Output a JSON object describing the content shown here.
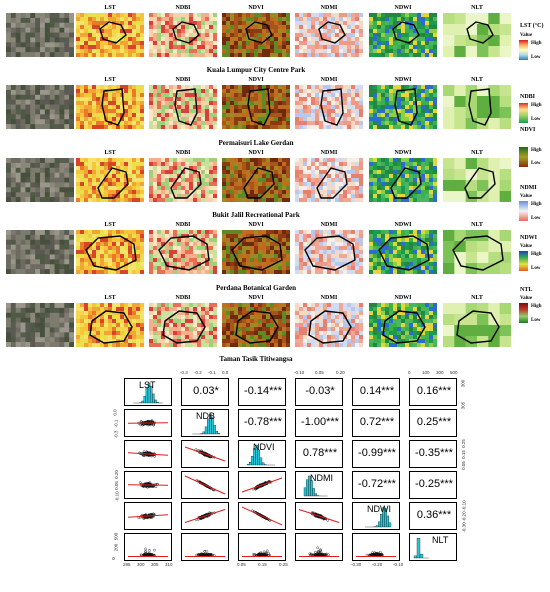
{
  "index_labels": [
    "LST",
    "NDBI",
    "NDVI",
    "NDMI",
    "NDWI",
    "NLT"
  ],
  "captions": [
    "Kuala Lumpur City Centre Park",
    "Permaisuri Lake Gerdan",
    "Bukit Jalil Recreational Park",
    "Perdana Botanical Garden",
    "Taman Tasik Titiwangsa"
  ],
  "legend": {
    "lst": {
      "title": "LST (°C)",
      "value": "Value",
      "high": "High",
      "low": "Low"
    },
    "ndbi": {
      "title": "NDBI",
      "high": "High",
      "low": "Low"
    },
    "ndvi": {
      "title": "NDVI",
      "high": "High",
      "low": "Low"
    },
    "ndmi": {
      "title": "NDMI",
      "value": "Value",
      "high": "High",
      "low": "Low"
    },
    "ndwi": {
      "title": "NDWI",
      "value": "Value",
      "high": "High",
      "low": "Low"
    },
    "ntl": {
      "title": "NTL",
      "value": "Value",
      "high": "High",
      "low": "Low"
    }
  },
  "pairs_plot": {
    "variables": [
      "LST",
      "NDB",
      "NDVI",
      "NDMI",
      "NDWI",
      "NLT"
    ],
    "coefficients": [
      [
        "",
        "0.03*",
        "-0.14***",
        "-0.03*",
        "0.14***",
        "0.16***"
      ],
      [
        "",
        "",
        "-0.78***",
        "-1.00***",
        "0.72***",
        "0.25***"
      ],
      [
        "",
        "",
        "",
        "0.78***",
        "-0.99***",
        "-0.35***"
      ],
      [
        "",
        "",
        "",
        "",
        "-0.72***",
        "-0.25***"
      ],
      [
        "",
        "",
        "",
        "",
        "",
        "0.36***"
      ]
    ],
    "top_ticks": {
      "ndb": [
        "-0.3",
        "-0.2",
        "-0.1",
        "0.0"
      ],
      "ndmi": [
        "-0.10",
        "0.05",
        "0.20"
      ],
      "nlt": [
        "0",
        "100",
        "300",
        "500"
      ]
    },
    "right_ticks": {
      "lst": [
        "300",
        "305"
      ],
      "ndvi": [
        "0.25",
        "0.15",
        "0.05"
      ],
      "ndwi": [
        "-0.10",
        "-0.20",
        "-0.30"
      ]
    },
    "left_ticks": {
      "ndb": [
        "0.0",
        "-0.1",
        "-0.3"
      ],
      "ndmi": [
        "0.20",
        "0.05",
        "-0.10"
      ],
      "nlt": [
        "500",
        "200",
        "0"
      ]
    },
    "bottom_ticks": {
      "lst": [
        "295",
        "300",
        "305",
        "310"
      ],
      "ndvi": [
        "0.05",
        "0.15",
        "0.25"
      ],
      "ndwi": [
        "-0.30",
        "-0.20",
        "-0.10"
      ]
    }
  }
}
